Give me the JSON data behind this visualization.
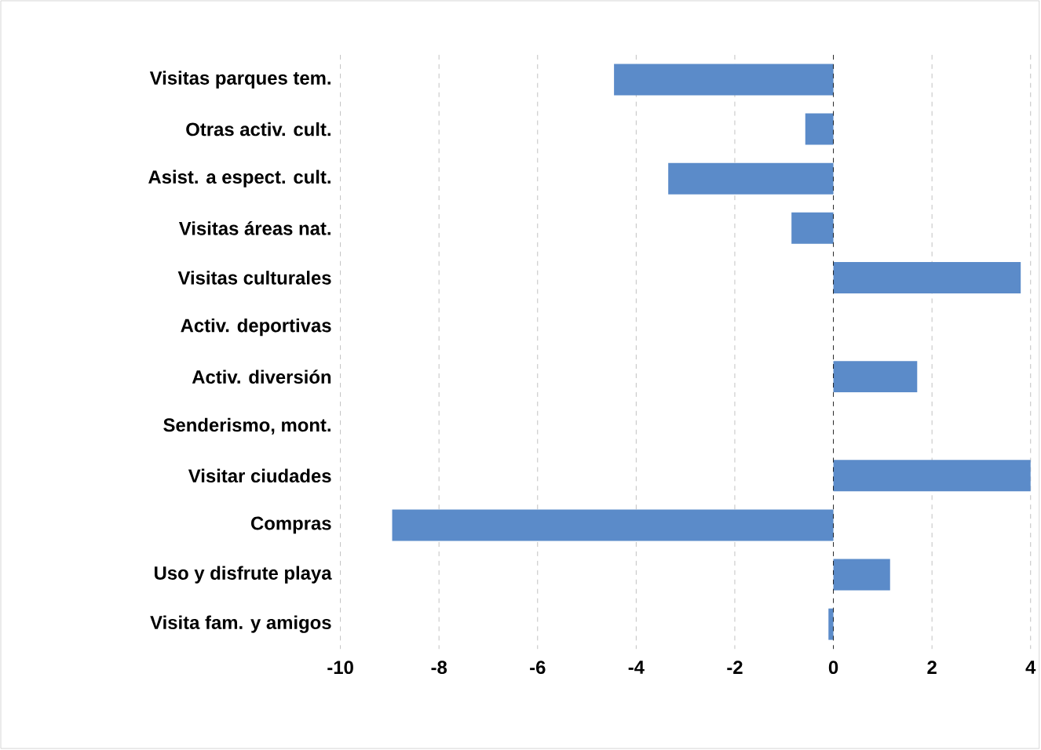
{
  "chart_data": {
    "type": "bar",
    "orientation": "horizontal",
    "categories": [
      "Visitas parques tem.",
      "Otras activ. cult.",
      "Asist. a espect. cult.",
      "Visitas áreas nat.",
      "Visitas culturales",
      "Activ. deportivas",
      "Activ. diversión",
      "Senderismo, mont.",
      "Visitar ciudades",
      "Compras",
      "Uso y disfrute playa",
      "Visita fam. y amigos"
    ],
    "values": [
      -4.45,
      -0.57,
      -3.35,
      -0.85,
      3.8,
      0,
      1.7,
      0,
      4.0,
      -8.95,
      1.15,
      -0.1
    ],
    "color": "#5b8bc9",
    "xlim": [
      -10,
      4
    ],
    "xticks": [
      -10,
      -8,
      -6,
      -4,
      -2,
      0,
      2,
      4
    ],
    "grid": "x",
    "ref_lines": [
      {
        "axis": "x",
        "value": 0,
        "color": "#000000",
        "line_style": "dashed"
      }
    ]
  }
}
